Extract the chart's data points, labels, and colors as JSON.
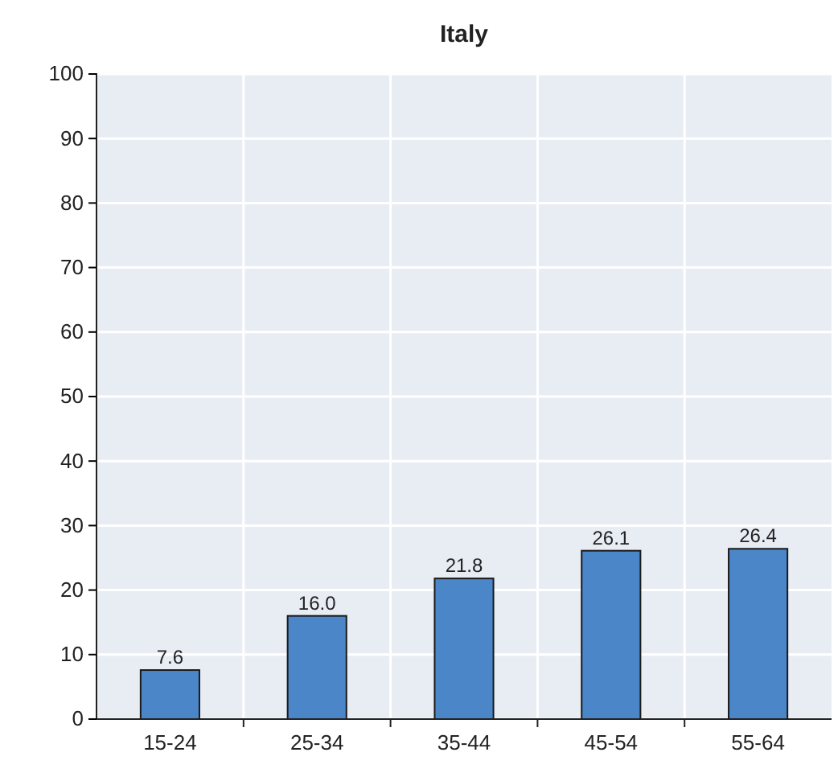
{
  "chart_data": {
    "type": "bar",
    "title": "Italy",
    "categories": [
      "15-24",
      "25-34",
      "35-44",
      "45-54",
      "55-64"
    ],
    "values": [
      7.6,
      16.0,
      21.8,
      26.1,
      26.4
    ],
    "value_labels": [
      "7.6",
      "16.0",
      "21.8",
      "26.1",
      "26.4"
    ],
    "color": "#4a86c8",
    "ylim": [
      0,
      100
    ],
    "yticks": [
      0,
      10,
      20,
      30,
      40,
      50,
      60,
      70,
      80,
      90,
      100
    ],
    "grid": true
  }
}
